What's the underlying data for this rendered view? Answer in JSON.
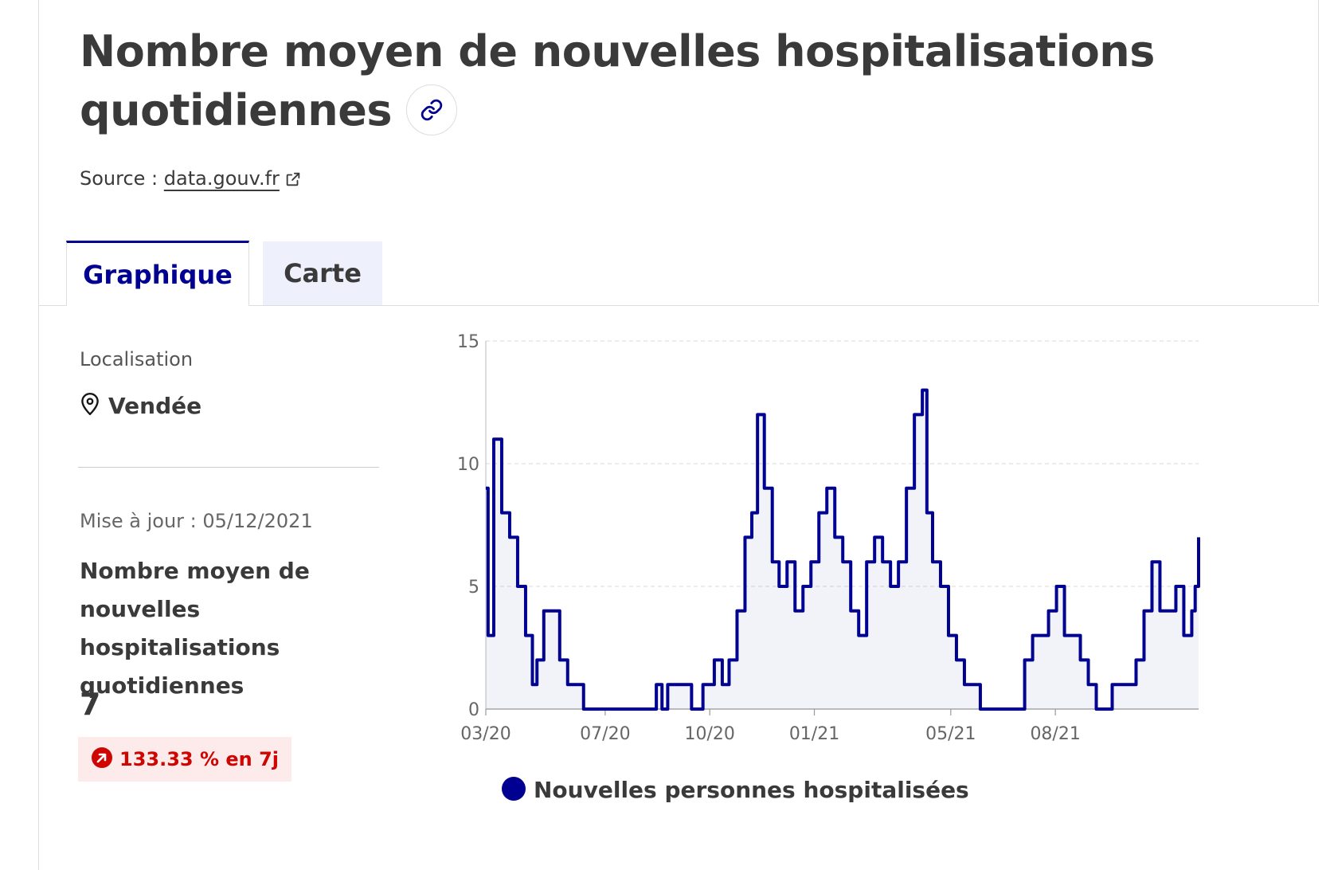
{
  "header": {
    "title": "Nombre moyen de nouvelles hospitalisations quotidiennes",
    "source_prefix": "Source :",
    "source_link": "data.gouv.fr"
  },
  "tabs": [
    {
      "label": "Graphique",
      "active": true
    },
    {
      "label": "Carte",
      "active": false
    }
  ],
  "sidebar": {
    "location_label": "Localisation",
    "location_value": "Vendée",
    "update_text": "Mise à jour : 05/12/2021",
    "indicator_title": "Nombre moyen de nouvelles hospitalisations quotidiennes",
    "indicator_value": "7",
    "trend_text": "133.33 % en 7j"
  },
  "legend": {
    "label": "Nouvelles personnes hospitalisées"
  },
  "colors": {
    "accent": "#000091",
    "trend": "#ce0500",
    "trend_bg": "#fdebeb",
    "tab_inactive_bg": "#eef0fb"
  },
  "icons": {
    "copy_link": "link-icon",
    "external": "external-link-icon",
    "location": "map-pin-icon",
    "trend": "arrow-up-right-icon"
  },
  "chart_data": {
    "type": "area",
    "series": [
      {
        "name": "Nouvelles personnes hospitalisées",
        "x": [
          "2020-03-18",
          "2020-03-20",
          "2020-03-25",
          "2020-04-01",
          "2020-04-08",
          "2020-04-15",
          "2020-04-22",
          "2020-04-28",
          "2020-05-02",
          "2020-05-08",
          "2020-05-15",
          "2020-05-22",
          "2020-05-29",
          "2020-06-05",
          "2020-06-12",
          "2020-06-20",
          "2020-07-01",
          "2020-07-15",
          "2020-08-01",
          "2020-08-15",
          "2020-08-20",
          "2020-08-25",
          "2020-09-05",
          "2020-09-15",
          "2020-09-25",
          "2020-10-05",
          "2020-10-12",
          "2020-10-18",
          "2020-10-25",
          "2020-11-01",
          "2020-11-07",
          "2020-11-12",
          "2020-11-18",
          "2020-11-25",
          "2020-12-01",
          "2020-12-08",
          "2020-12-15",
          "2020-12-22",
          "2020-12-29",
          "2021-01-05",
          "2021-01-12",
          "2021-01-19",
          "2021-01-26",
          "2021-02-02",
          "2021-02-09",
          "2021-02-16",
          "2021-02-23",
          "2021-03-02",
          "2021-03-09",
          "2021-03-16",
          "2021-03-23",
          "2021-03-30",
          "2021-04-06",
          "2021-04-10",
          "2021-04-15",
          "2021-04-22",
          "2021-04-29",
          "2021-05-06",
          "2021-05-13",
          "2021-05-20",
          "2021-05-27",
          "2021-06-05",
          "2021-06-15",
          "2021-06-25",
          "2021-07-05",
          "2021-07-12",
          "2021-07-19",
          "2021-07-26",
          "2021-08-02",
          "2021-08-09",
          "2021-08-16",
          "2021-08-23",
          "2021-08-30",
          "2021-09-06",
          "2021-09-13",
          "2021-09-20",
          "2021-09-27",
          "2021-10-04",
          "2021-10-11",
          "2021-10-18",
          "2021-10-25",
          "2021-11-01",
          "2021-11-08",
          "2021-11-15",
          "2021-11-22",
          "2021-11-29",
          "2021-12-02",
          "2021-12-05"
        ],
        "values": [
          9,
          3,
          11,
          8,
          7,
          5,
          3,
          1,
          2,
          4,
          4,
          2,
          1,
          1,
          0,
          0,
          0,
          0,
          0,
          1,
          0,
          1,
          1,
          0,
          1,
          2,
          1,
          2,
          4,
          7,
          8,
          12,
          9,
          6,
          5,
          6,
          4,
          5,
          6,
          8,
          9,
          7,
          6,
          4,
          3,
          6,
          7,
          6,
          5,
          6,
          9,
          12,
          13,
          8,
          6,
          5,
          3,
          2,
          1,
          1,
          0,
          0,
          0,
          0,
          2,
          3,
          3,
          4,
          5,
          3,
          3,
          2,
          1,
          0,
          0,
          1,
          1,
          1,
          2,
          4,
          6,
          4,
          4,
          5,
          3,
          4,
          5,
          7
        ]
      }
    ],
    "ylim": [
      0,
      15
    ],
    "yticks": [
      0,
      5,
      10,
      15
    ],
    "xtick_labels": [
      "03/20",
      "07/20",
      "10/20",
      "01/21",
      "05/21",
      "08/21"
    ],
    "xtick_dates": [
      "2020-03-18",
      "2020-07-01",
      "2020-10-01",
      "2021-01-01",
      "2021-05-01",
      "2021-08-01"
    ],
    "xrange": [
      "2020-03-18",
      "2021-12-05"
    ],
    "grid": "horizontal dashed",
    "legend_position": "bottom-left"
  }
}
